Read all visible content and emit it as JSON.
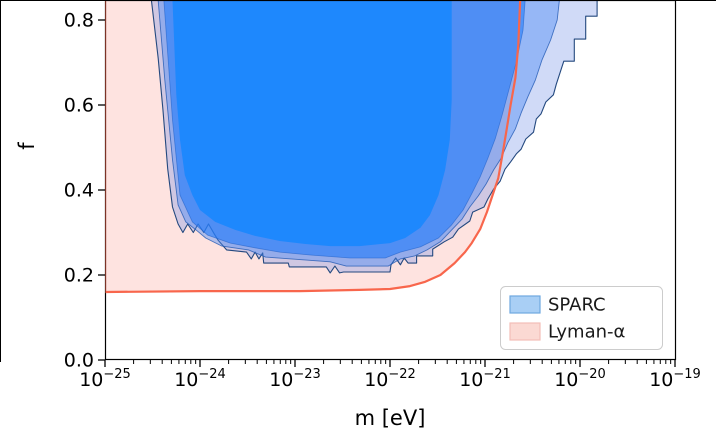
{
  "chart_data": {
    "type": "area",
    "title": "",
    "xlabel": "m [eV]",
    "ylabel": "f",
    "x_scale": "log",
    "x_tick_exponents": [
      -25,
      -24,
      -23,
      -22,
      -21,
      -20,
      -19
    ],
    "xlim_exponents": [
      -25,
      -19
    ],
    "y_ticks": [
      {
        "value": 0.0,
        "label": "0.0"
      },
      {
        "value": 0.2,
        "label": "0.2"
      },
      {
        "value": 0.4,
        "label": "0.4"
      },
      {
        "value": 0.6,
        "label": "0.6"
      },
      {
        "value": 0.8,
        "label": "0.8"
      }
    ],
    "ylim": [
      0.0,
      0.845
    ],
    "grid": false,
    "legend_position": "lower right",
    "series": [
      {
        "name": "Lyman-α",
        "kind": "excluded-region-left-of-curve",
        "line_color": "#f8664c",
        "fill_color": "rgba(250,128,114,0.22)",
        "boundary_points_log10m_f": [
          [
            -25.0,
            0.16
          ],
          [
            -24.0,
            0.162
          ],
          [
            -22.95,
            0.162
          ],
          [
            -22.32,
            0.165
          ],
          [
            -22.0,
            0.167
          ],
          [
            -21.79,
            0.174
          ],
          [
            -21.63,
            0.184
          ],
          [
            -21.47,
            0.2
          ],
          [
            -21.32,
            0.228
          ],
          [
            -21.21,
            0.254
          ],
          [
            -21.14,
            0.275
          ],
          [
            -21.05,
            0.308
          ],
          [
            -20.98,
            0.348
          ],
          [
            -20.92,
            0.388
          ],
          [
            -20.86,
            0.428
          ],
          [
            -20.81,
            0.492
          ],
          [
            -20.77,
            0.546
          ],
          [
            -20.73,
            0.6
          ],
          [
            -20.68,
            0.664
          ],
          [
            -20.65,
            0.741
          ],
          [
            -20.62,
            0.9
          ]
        ]
      },
      {
        "name": "SPARC",
        "kind": "nested-exclusion-contours",
        "layers": [
          {
            "fill": "rgba(110,140,230,0.32)",
            "stroke": "#24497f",
            "stroke_width": 1.1,
            "points_log10m_f": [
              [
                -24.51,
                0.9
              ],
              [
                -24.51,
                0.845
              ],
              [
                -24.44,
                0.71
              ],
              [
                -24.39,
                0.59
              ],
              [
                -24.34,
                0.45
              ],
              [
                -24.29,
                0.36
              ],
              [
                -24.23,
                0.32
              ],
              [
                -24.18,
                0.3
              ],
              [
                -24.13,
                0.32
              ],
              [
                -24.07,
                0.3
              ],
              [
                -24.02,
                0.32
              ],
              [
                -23.96,
                0.3
              ],
              [
                -23.91,
                0.32
              ],
              [
                -23.85,
                0.297
              ],
              [
                -23.81,
                0.282
              ],
              [
                -23.72,
                0.259
              ],
              [
                -23.51,
                0.254
              ],
              [
                -23.46,
                0.238
              ],
              [
                -23.42,
                0.254
              ],
              [
                -23.38,
                0.238
              ],
              [
                -23.34,
                0.252
              ],
              [
                -23.33,
                0.228
              ],
              [
                -23.07,
                0.228
              ],
              [
                -23.06,
                0.219
              ],
              [
                -22.67,
                0.219
              ],
              [
                -22.63,
                0.205
              ],
              [
                -22.58,
                0.221
              ],
              [
                -22.53,
                0.205
              ],
              [
                -22.49,
                0.207
              ],
              [
                -22.0,
                0.207
              ],
              [
                -21.99,
                0.224
              ],
              [
                -21.94,
                0.24
              ],
              [
                -21.89,
                0.224
              ],
              [
                -21.85,
                0.24
              ],
              [
                -21.81,
                0.228
              ],
              [
                -21.72,
                0.228
              ],
              [
                -21.72,
                0.245
              ],
              [
                -21.55,
                0.245
              ],
              [
                -21.55,
                0.261
              ],
              [
                -21.43,
                0.278
              ],
              [
                -21.34,
                0.289
              ],
              [
                -21.28,
                0.308
              ],
              [
                -21.16,
                0.327
              ],
              [
                -21.13,
                0.348
              ],
              [
                -21.01,
                0.36
              ],
              [
                -20.97,
                0.379
              ],
              [
                -20.91,
                0.402
              ],
              [
                -20.84,
                0.421
              ],
              [
                -20.79,
                0.449
              ],
              [
                -20.73,
                0.466
              ],
              [
                -20.67,
                0.485
              ],
              [
                -20.62,
                0.496
              ],
              [
                -20.57,
                0.52
              ],
              [
                -20.49,
                0.536
              ],
              [
                -20.46,
                0.567
              ],
              [
                -20.41,
                0.579
              ],
              [
                -20.36,
                0.607
              ],
              [
                -20.28,
                0.624
              ],
              [
                -20.25,
                0.649
              ],
              [
                -20.17,
                0.703
              ],
              [
                -20.06,
                0.703
              ],
              [
                -20.06,
                0.755
              ],
              [
                -19.94,
                0.755
              ],
              [
                -19.94,
                0.809
              ],
              [
                -19.82,
                0.809
              ],
              [
                -19.82,
                0.9
              ]
            ]
          },
          {
            "fill": "rgba(70,135,245,0.42)",
            "stroke": "rgba(35,90,180,0.8)",
            "stroke_width": 0.9,
            "points_log10m_f": [
              [
                -24.44,
                0.9
              ],
              [
                -24.44,
                0.845
              ],
              [
                -24.37,
                0.659
              ],
              [
                -24.29,
                0.471
              ],
              [
                -24.23,
                0.365
              ],
              [
                -24.15,
                0.325
              ],
              [
                -24.03,
                0.304
              ],
              [
                -23.94,
                0.287
              ],
              [
                -23.77,
                0.268
              ],
              [
                -23.49,
                0.259
              ],
              [
                -23.31,
                0.242
              ],
              [
                -23.04,
                0.238
              ],
              [
                -22.63,
                0.231
              ],
              [
                -22.46,
                0.221
              ],
              [
                -22.02,
                0.221
              ],
              [
                -21.89,
                0.238
              ],
              [
                -21.74,
                0.245
              ],
              [
                -21.61,
                0.259
              ],
              [
                -21.47,
                0.278
              ],
              [
                -21.35,
                0.306
              ],
              [
                -21.24,
                0.332
              ],
              [
                -21.16,
                0.36
              ],
              [
                -21.07,
                0.386
              ],
              [
                -20.99,
                0.414
              ],
              [
                -20.91,
                0.447
              ],
              [
                -20.83,
                0.475
              ],
              [
                -20.76,
                0.511
              ],
              [
                -20.68,
                0.544
              ],
              [
                -20.62,
                0.581
              ],
              [
                -20.55,
                0.619
              ],
              [
                -20.47,
                0.659
              ],
              [
                -20.4,
                0.706
              ],
              [
                -20.31,
                0.753
              ],
              [
                -20.24,
                0.8
              ],
              [
                -20.19,
                0.9
              ]
            ]
          },
          {
            "fill": "rgba(35,125,250,0.62)",
            "stroke": "rgba(30,95,200,0.6)",
            "stroke_width": 0.8,
            "points_log10m_f": [
              [
                -24.38,
                0.9
              ],
              [
                -24.38,
                0.845
              ],
              [
                -24.29,
                0.565
              ],
              [
                -24.21,
                0.388
              ],
              [
                -24.08,
                0.325
              ],
              [
                -23.92,
                0.294
              ],
              [
                -23.68,
                0.275
              ],
              [
                -23.42,
                0.264
              ],
              [
                -23.16,
                0.254
              ],
              [
                -22.84,
                0.247
              ],
              [
                -22.42,
                0.24
              ],
              [
                -22.05,
                0.24
              ],
              [
                -21.89,
                0.254
              ],
              [
                -21.68,
                0.266
              ],
              [
                -21.49,
                0.287
              ],
              [
                -21.35,
                0.318
              ],
              [
                -21.23,
                0.353
              ],
              [
                -21.14,
                0.391
              ],
              [
                -21.05,
                0.431
              ],
              [
                -20.97,
                0.475
              ],
              [
                -20.89,
                0.522
              ],
              [
                -20.82,
                0.576
              ],
              [
                -20.75,
                0.635
              ],
              [
                -20.67,
                0.701
              ],
              [
                -20.6,
                0.776
              ],
              [
                -20.56,
                0.9
              ]
            ]
          },
          {
            "fill": "#1e88fd",
            "stroke": "none",
            "stroke_width": 0,
            "points_log10m_f": [
              [
                -24.29,
                0.9
              ],
              [
                -24.29,
                0.845
              ],
              [
                -24.25,
                0.624
              ],
              [
                -24.21,
                0.518
              ],
              [
                -24.16,
                0.435
              ],
              [
                -24.08,
                0.388
              ],
              [
                -24.0,
                0.353
              ],
              [
                -23.84,
                0.325
              ],
              [
                -23.63,
                0.306
              ],
              [
                -23.42,
                0.292
              ],
              [
                -23.16,
                0.28
              ],
              [
                -22.89,
                0.273
              ],
              [
                -22.63,
                0.268
              ],
              [
                -22.32,
                0.268
              ],
              [
                -22.0,
                0.275
              ],
              [
                -21.84,
                0.287
              ],
              [
                -21.68,
                0.311
              ],
              [
                -21.58,
                0.341
              ],
              [
                -21.49,
                0.388
              ],
              [
                -21.42,
                0.447
              ],
              [
                -21.37,
                0.518
              ],
              [
                -21.35,
                0.612
              ],
              [
                -21.35,
                0.9
              ]
            ]
          }
        ]
      }
    ],
    "legend": {
      "items": [
        {
          "label": "SPARC",
          "swatch_fill": "#a9cff5",
          "swatch_edge": "#6fa8e0"
        },
        {
          "label": "Lyman-α",
          "swatch_fill": "#fbd9d3",
          "swatch_edge": "#f3beb7"
        }
      ]
    },
    "colors": {
      "sparc_core_blue": "#1e88fd",
      "sparc_outline_navy": "#24497f",
      "lyman_line_red": "#f8664c",
      "lyman_fill_pink": "rgba(250,128,114,0.22)",
      "axis_color": "#000000"
    }
  }
}
